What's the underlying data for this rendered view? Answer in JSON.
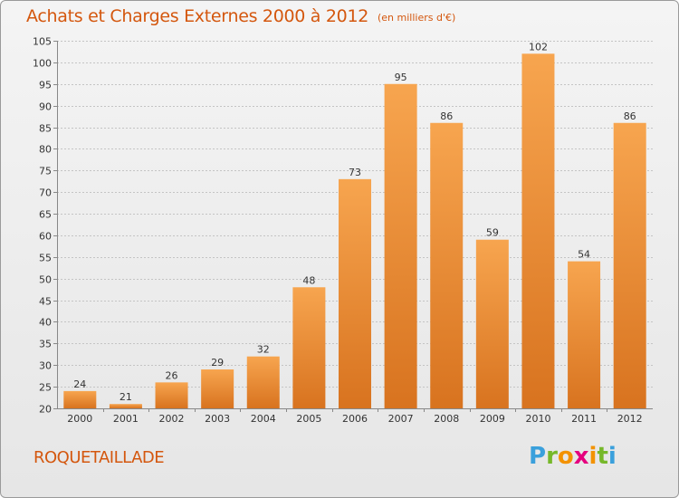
{
  "header": {
    "title": "Achats et Charges Externes 2000 à 2012",
    "unit": "(en milliers d'€)"
  },
  "footer": {
    "commune": "ROQUETAILLADE",
    "logo": [
      "P",
      "r",
      "o",
      "x",
      "i",
      "t",
      "i"
    ]
  },
  "colors": {
    "title": "#d4570e",
    "bar_light": "#f7a54f",
    "bar_dark": "#d8731f",
    "logo": [
      "#3aa0dc",
      "#76b82a",
      "#f39200",
      "#e5007e",
      "#f39200",
      "#76b82a",
      "#3aa0dc"
    ]
  },
  "chart_data": {
    "type": "bar",
    "title": "Achats et Charges Externes 2000 à 2012",
    "xlabel": "",
    "ylabel": "",
    "categories": [
      "2000",
      "2001",
      "2002",
      "2003",
      "2004",
      "2005",
      "2006",
      "2007",
      "2008",
      "2009",
      "2010",
      "2011",
      "2012"
    ],
    "values": [
      24,
      21,
      26,
      29,
      32,
      48,
      73,
      95,
      86,
      59,
      102,
      54,
      86
    ],
    "ylim": [
      20,
      105
    ],
    "yticks": [
      20,
      25,
      30,
      35,
      40,
      45,
      50,
      55,
      60,
      65,
      70,
      75,
      80,
      85,
      90,
      95,
      100,
      105
    ],
    "grid": "horizontal dashed"
  }
}
